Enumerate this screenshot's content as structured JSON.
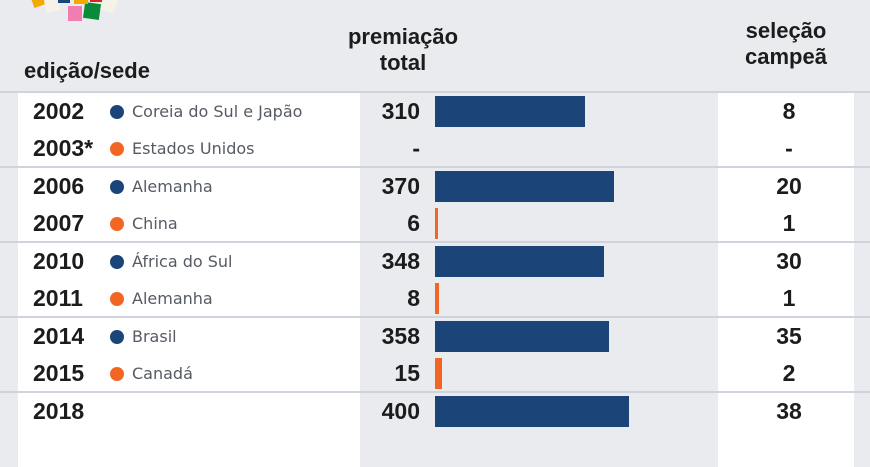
{
  "header": {
    "edition": "edição/sede",
    "prize_line1": "premiação",
    "prize_line2": "total",
    "champion_line1": "seleção",
    "champion_line2": "campeã"
  },
  "colors": {
    "men": "#1b4478",
    "women": "#f26522"
  },
  "chart_data": {
    "type": "bar",
    "categories": [
      "2002",
      "2003*",
      "2006",
      "2007",
      "2010",
      "2011",
      "2014",
      "2015",
      "2018"
    ],
    "hosts": [
      "Coreia do Sul e Japão",
      "Estados Unidos",
      "Alemanha",
      "China",
      "África do Sul",
      "Alemanha",
      "Brasil",
      "Canadá",
      ""
    ],
    "competition": [
      "men",
      "women",
      "men",
      "women",
      "men",
      "women",
      "men",
      "women",
      "men"
    ],
    "prize_total_display": [
      "310",
      "-",
      "370",
      "6",
      "348",
      "8",
      "358",
      "15",
      "400"
    ],
    "prize_total": [
      310,
      null,
      370,
      6,
      348,
      8,
      358,
      15,
      400
    ],
    "champion_prize_display": [
      "8",
      "-",
      "20",
      "1",
      "30",
      "1",
      "35",
      "2",
      "38"
    ],
    "champion_prize": [
      8,
      null,
      20,
      1,
      30,
      1,
      35,
      2,
      38
    ],
    "xlim": [
      0,
      400
    ]
  }
}
